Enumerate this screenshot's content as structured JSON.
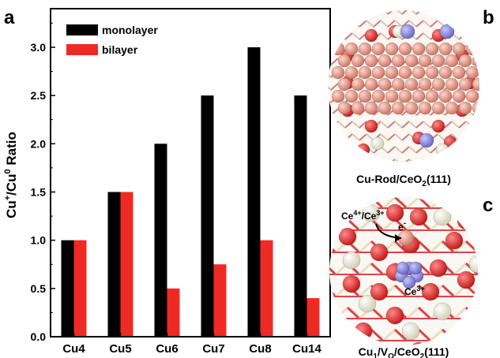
{
  "panels": {
    "a": "a",
    "b": "b",
    "c": "c"
  },
  "chart_data": {
    "type": "bar",
    "categories": [
      "Cu4",
      "Cu5",
      "Cu6",
      "Cu7",
      "Cu8",
      "Cu14"
    ],
    "series": [
      {
        "name": "monolayer",
        "values": [
          1.0,
          1.5,
          2.0,
          2.5,
          3.0,
          2.5
        ],
        "color": "#000000"
      },
      {
        "name": "bilayer",
        "values": [
          1.0,
          1.5,
          0.5,
          0.75,
          1.0,
          0.4
        ],
        "color": "#ee2a24"
      }
    ],
    "title": "",
    "ylabel_parts": [
      "Cu",
      "+",
      "/Cu",
      "0",
      " Ratio"
    ],
    "ylim": [
      0,
      3.4
    ],
    "yticks": [
      "0.0",
      "0.5",
      "1.0",
      "1.5",
      "2.0",
      "2.5",
      "3.0"
    ],
    "legend_position": "top-left"
  },
  "structure_b": {
    "caption_parts": [
      "Cu-Rod/CeO",
      "2",
      "(111)"
    ],
    "colors": {
      "cerium": "#eeecd6",
      "oxygen": "#dd2222",
      "copper": "#e8917f",
      "reduced_cerium": "#8888dd"
    }
  },
  "structure_c": {
    "caption_parts": [
      "Cu",
      "1",
      "/V",
      "O",
      "/CeO",
      "2",
      "(111)"
    ],
    "annotation_parts": [
      "Ce",
      "4+",
      "/Ce",
      "3+"
    ],
    "electron_parts": [
      "e",
      "-"
    ],
    "ce3_parts": [
      "Ce",
      "3+"
    ]
  }
}
